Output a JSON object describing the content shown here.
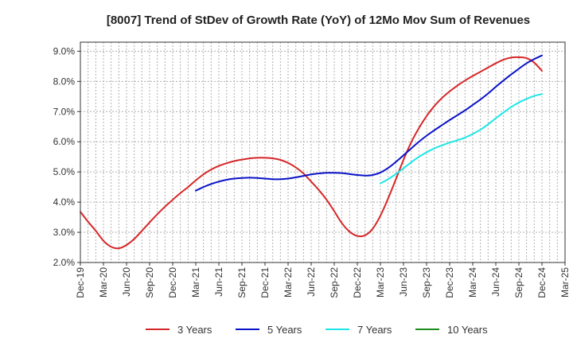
{
  "chart_data": {
    "type": "line",
    "title": "[8007]  Trend of StDev of Growth Rate (YoY) of 12Mo Mov Sum of Revenues",
    "xlabel": "",
    "ylabel": "",
    "ylim": [
      2.0,
      9.3
    ],
    "yticks": [
      2.0,
      3.0,
      4.0,
      5.0,
      6.0,
      7.0,
      8.0,
      9.0
    ],
    "ytick_labels": [
      "2.0%",
      "3.0%",
      "4.0%",
      "5.0%",
      "6.0%",
      "7.0%",
      "8.0%",
      "9.0%"
    ],
    "x_range_months": [
      0,
      63
    ],
    "xticks": [
      0,
      3,
      6,
      9,
      12,
      15,
      18,
      21,
      24,
      27,
      30,
      33,
      36,
      39,
      42,
      45,
      48,
      51,
      54,
      57,
      60,
      63
    ],
    "xtick_labels": [
      "Dec-19",
      "Mar-20",
      "Jun-20",
      "Sep-20",
      "Dec-20",
      "Mar-21",
      "Jun-21",
      "Sep-21",
      "Dec-21",
      "Mar-22",
      "Jun-22",
      "Sep-22",
      "Dec-22",
      "Mar-23",
      "Jun-23",
      "Sep-23",
      "Dec-23",
      "Mar-24",
      "Jun-24",
      "Sep-24",
      "Dec-24",
      "Mar-25"
    ],
    "grid": true,
    "legend_position": "bottom",
    "series": [
      {
        "name": "3 Years",
        "color": "#d62728",
        "x": [
          0,
          1,
          2,
          3,
          4,
          5,
          6,
          7,
          8,
          9,
          10,
          11,
          12,
          13,
          14,
          15,
          16,
          17,
          18,
          19,
          20,
          21,
          22,
          23,
          24,
          25,
          26,
          27,
          28,
          29,
          30,
          31,
          32,
          33,
          34,
          35,
          36,
          37,
          38,
          39,
          40,
          41,
          42,
          43,
          44,
          45,
          46,
          47,
          48,
          49,
          50,
          51,
          52,
          53,
          54,
          55,
          56,
          57,
          58,
          59,
          60
        ],
        "values": [
          3.68,
          3.35,
          3.05,
          2.72,
          2.52,
          2.47,
          2.58,
          2.78,
          3.05,
          3.33,
          3.6,
          3.85,
          4.08,
          4.3,
          4.5,
          4.72,
          4.92,
          5.08,
          5.2,
          5.29,
          5.36,
          5.41,
          5.45,
          5.47,
          5.47,
          5.45,
          5.4,
          5.3,
          5.15,
          4.95,
          4.68,
          4.4,
          4.08,
          3.7,
          3.3,
          3.02,
          2.88,
          2.9,
          3.12,
          3.55,
          4.12,
          4.75,
          5.4,
          5.98,
          6.45,
          6.85,
          7.18,
          7.45,
          7.67,
          7.86,
          8.03,
          8.18,
          8.32,
          8.46,
          8.6,
          8.72,
          8.79,
          8.8,
          8.77,
          8.62,
          8.35
        ]
      },
      {
        "name": "5 Years",
        "color": "#0a12c8",
        "x": [
          15,
          16,
          17,
          18,
          19,
          20,
          21,
          22,
          23,
          24,
          25,
          26,
          27,
          28,
          29,
          30,
          31,
          32,
          33,
          34,
          35,
          36,
          37,
          38,
          39,
          40,
          41,
          42,
          43,
          44,
          45,
          46,
          47,
          48,
          49,
          50,
          51,
          52,
          53,
          54,
          55,
          56,
          57,
          58,
          59,
          60
        ],
        "values": [
          4.38,
          4.5,
          4.6,
          4.68,
          4.74,
          4.78,
          4.8,
          4.81,
          4.8,
          4.78,
          4.76,
          4.76,
          4.78,
          4.82,
          4.87,
          4.92,
          4.95,
          4.97,
          4.97,
          4.96,
          4.93,
          4.9,
          4.88,
          4.9,
          4.98,
          5.13,
          5.33,
          5.55,
          5.78,
          6.0,
          6.2,
          6.38,
          6.55,
          6.72,
          6.88,
          7.04,
          7.22,
          7.4,
          7.6,
          7.82,
          8.03,
          8.23,
          8.42,
          8.6,
          8.74,
          8.86
        ]
      },
      {
        "name": "7 Years",
        "color": "#1ee6e6",
        "x": [
          39,
          40,
          41,
          42,
          43,
          44,
          45,
          46,
          47,
          48,
          49,
          50,
          51,
          52,
          53,
          54,
          55,
          56,
          57,
          58,
          59,
          60
        ],
        "values": [
          4.62,
          4.76,
          4.93,
          5.12,
          5.32,
          5.5,
          5.65,
          5.78,
          5.88,
          5.97,
          6.05,
          6.14,
          6.26,
          6.4,
          6.58,
          6.78,
          6.97,
          7.15,
          7.3,
          7.42,
          7.52,
          7.58
        ]
      },
      {
        "name": "10 Years",
        "color": "#1e8c1e",
        "x": [],
        "values": []
      }
    ]
  }
}
